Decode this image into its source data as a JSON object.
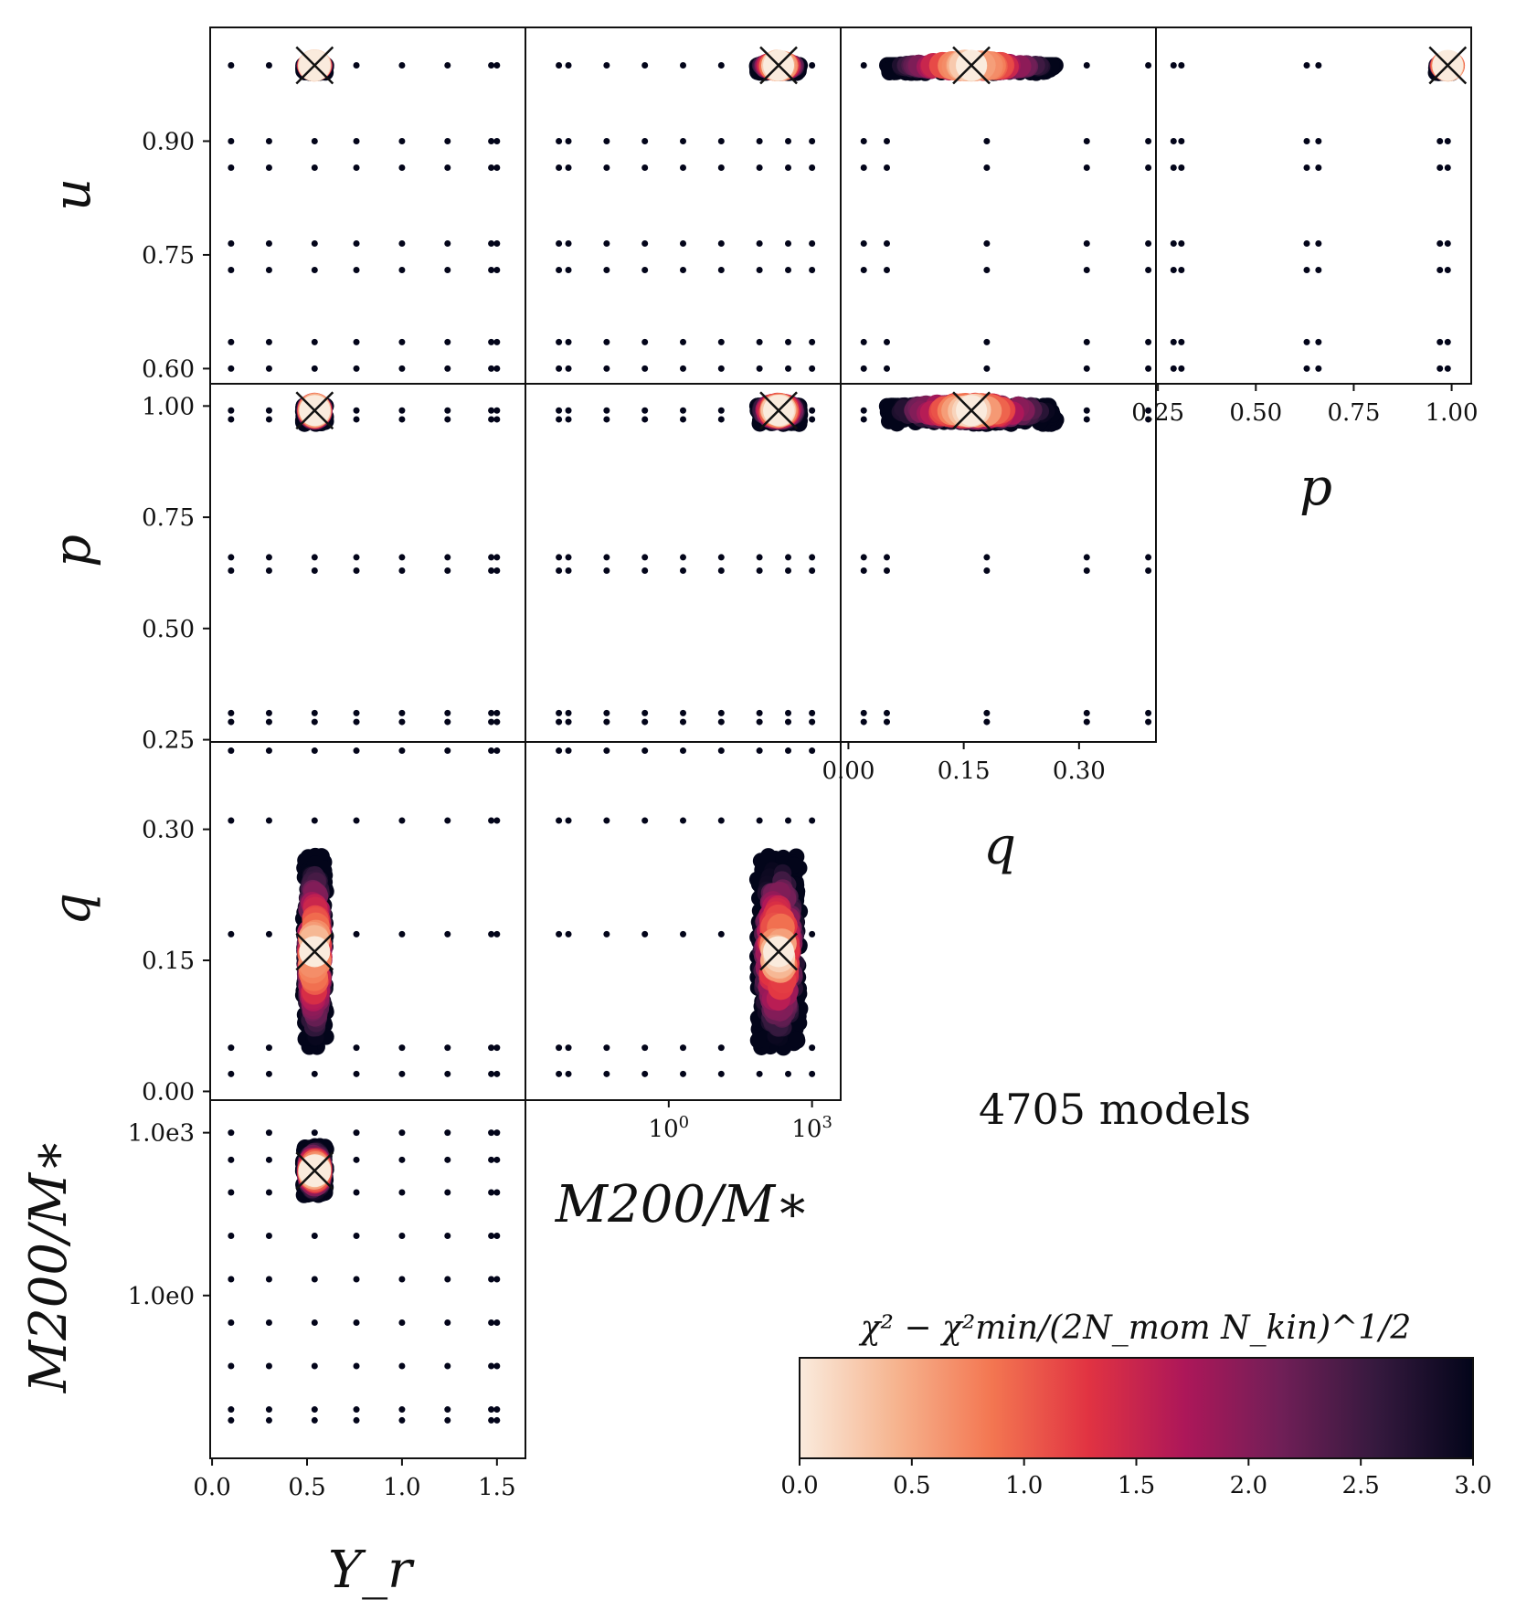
{
  "chart_data": {
    "type": "scatter",
    "title": "",
    "annotation": "4705 models",
    "parameters": [
      "Upsilon_r",
      "M200/M*",
      "q",
      "p",
      "u"
    ],
    "axis_labels": {
      "upsilon": "Υ_r",
      "mass": "M200/M∗",
      "q": "q",
      "p": "p",
      "u": "u"
    },
    "ranges": {
      "upsilon": [
        -0.01,
        1.65
      ],
      "mass_log10": [
        -3.0,
        3.6
      ],
      "q": [
        -0.01,
        0.4
      ],
      "p": [
        0.245,
        1.05
      ],
      "u": [
        0.58,
        1.05
      ]
    },
    "ticks": {
      "upsilon": [
        "0.0",
        "0.5",
        "1.0",
        "1.5"
      ],
      "mass": [
        "10^0",
        "10^3"
      ],
      "mass_left": [
        "1.0e3",
        "1.0e0"
      ],
      "q": [
        "0.00",
        "0.15",
        "0.30"
      ],
      "p": [
        "0.25",
        "0.50",
        "0.75",
        "1.00"
      ],
      "u": [
        "0.60",
        "0.75",
        "0.90"
      ]
    },
    "grid_samples": {
      "upsilon": [
        0.1,
        0.3,
        0.54,
        0.76,
        1.0,
        1.24,
        1.47,
        1.5
      ],
      "mass_log10": [
        3.0,
        2.5,
        1.9,
        1.1,
        0.3,
        -0.5,
        -1.3,
        -2.1,
        -2.3
      ],
      "q": [
        0.02,
        0.05,
        0.18,
        0.31,
        0.39
      ],
      "p": [
        0.29,
        0.31,
        0.63,
        0.66,
        0.97,
        0.99
      ],
      "u": [
        0.6,
        0.635,
        0.73,
        0.765,
        0.865,
        0.9,
        1.0
      ]
    },
    "best_fit": {
      "upsilon": 0.54,
      "mass_log10": 2.3,
      "q": 0.16,
      "p": 0.99,
      "u": 1.0
    },
    "colorbar": {
      "label": "χ² − χ²min/(2N_mom N_kin)^1/2",
      "range": [
        0.0,
        3.0
      ],
      "ticks": [
        "0.0",
        "0.5",
        "1.0",
        "1.5",
        "2.0",
        "2.5",
        "3.0"
      ],
      "colormap": "rocket_r",
      "colors": [
        "#faebdd",
        "#f6b48f",
        "#f37651",
        "#e13342",
        "#ad1759",
        "#701f57",
        "#35193e",
        "#03051a"
      ]
    }
  }
}
